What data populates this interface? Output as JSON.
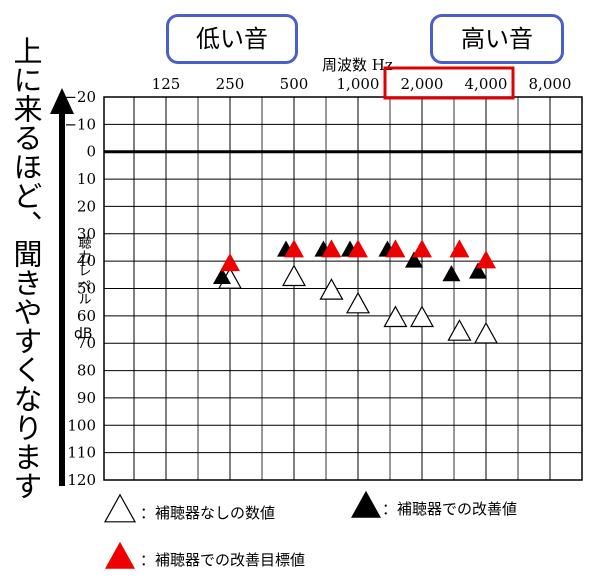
{
  "tags": {
    "low": "低い音",
    "high": "高い音"
  },
  "side_text": "上に来るほど、聞きやすくなります",
  "chart_data": {
    "type": "scatter",
    "title": "",
    "xlabel": "周波数 Hz",
    "ylabel": "聴力レベル dB",
    "x_ticks": [
      "125",
      "250",
      "500",
      "1,000",
      "2,000",
      "4,000",
      "8,000"
    ],
    "y_ticks": [
      "−20",
      "−10",
      "0",
      "10",
      "20",
      "30",
      "40",
      "50",
      "60",
      "70",
      "80",
      "90",
      "100",
      "110",
      "120"
    ],
    "ylim": [
      -20,
      120
    ],
    "y_inverted": true,
    "highlight_x_ticks": [
      "2,000",
      "4,000"
    ],
    "series": [
      {
        "name": "補聴器なしの数値",
        "marker": "open-triangle",
        "color": "#ffffff",
        "points": [
          {
            "x": 250,
            "y": 47
          },
          {
            "x": 500,
            "y": 46
          },
          {
            "x": 750,
            "y": 51
          },
          {
            "x": 1000,
            "y": 56
          },
          {
            "x": 1500,
            "y": 61
          },
          {
            "x": 2000,
            "y": 61
          },
          {
            "x": 3000,
            "y": 66
          },
          {
            "x": 4000,
            "y": 67
          }
        ]
      },
      {
        "name": "補聴器での改善値",
        "marker": "filled-triangle",
        "color": "#000000",
        "points": [
          {
            "x": 250,
            "y": 46
          },
          {
            "x": 500,
            "y": 36
          },
          {
            "x": 750,
            "y": 36
          },
          {
            "x": 1000,
            "y": 36
          },
          {
            "x": 1500,
            "y": 36
          },
          {
            "x": 2000,
            "y": 40
          },
          {
            "x": 3000,
            "y": 45
          },
          {
            "x": 4000,
            "y": 44
          }
        ]
      },
      {
        "name": "補聴器での改善目標値",
        "marker": "filled-triangle",
        "color": "#ee0000",
        "points": [
          {
            "x": 250,
            "y": 41
          },
          {
            "x": 500,
            "y": 36
          },
          {
            "x": 750,
            "y": 36
          },
          {
            "x": 1000,
            "y": 36
          },
          {
            "x": 1500,
            "y": 36
          },
          {
            "x": 2000,
            "y": 36
          },
          {
            "x": 3000,
            "y": 36
          },
          {
            "x": 4000,
            "y": 40
          }
        ]
      }
    ],
    "legend": [
      {
        "marker": "open-triangle",
        "color": "#ffffff",
        "label": "：補聴器なしの数値"
      },
      {
        "marker": "filled-triangle",
        "color": "#000000",
        "label": "：補聴器での改善値"
      },
      {
        "marker": "filled-triangle",
        "color": "#ee0000",
        "label": "：補聴器での改善目標値"
      }
    ]
  }
}
